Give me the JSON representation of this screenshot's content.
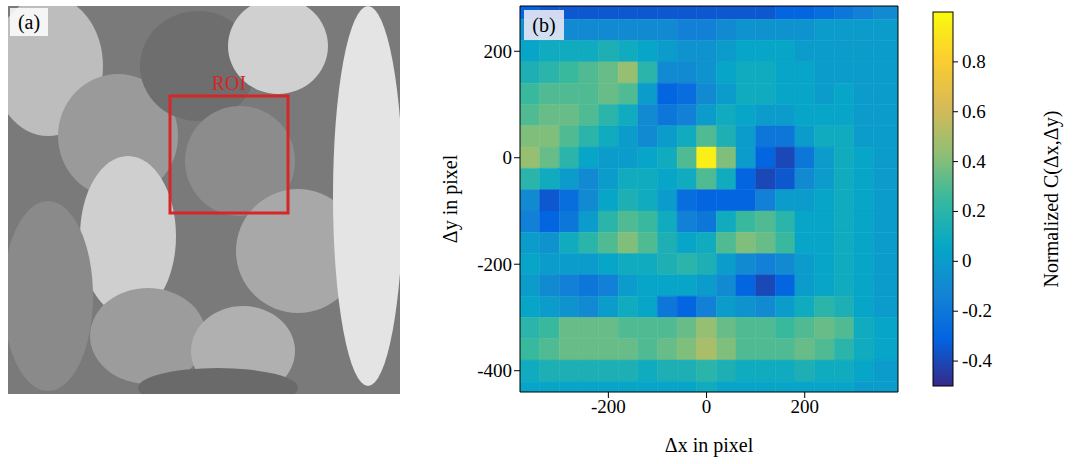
{
  "chart_data": [
    {
      "type": "image",
      "panel": "(a)",
      "annotation": "ROI"
    },
    {
      "type": "heatmap",
      "panel": "(b)",
      "x_label": "Δx in pixel",
      "y_label": "Δy in pixel",
      "xlim": [
        -380,
        390
      ],
      "ylim": [
        -440,
        285
      ],
      "xticks": [
        -200,
        0,
        200
      ],
      "yticks": [
        -400,
        -200,
        0,
        200
      ],
      "x": [
        -360,
        -320,
        -280,
        -240,
        -200,
        -160,
        -120,
        -80,
        -40,
        0,
        40,
        80,
        120,
        160,
        200,
        240,
        280,
        320,
        360
      ],
      "y": [
        280,
        240,
        200,
        160,
        120,
        80,
        40,
        0,
        -40,
        -80,
        -120,
        -160,
        -200,
        -240,
        -280,
        -320,
        -360,
        -400,
        -440
      ],
      "cells": [
        [
          -0.3,
          -0.35,
          -0.35,
          -0.35,
          -0.35,
          -0.35,
          -0.35,
          -0.35,
          -0.35,
          -0.35,
          -0.35,
          -0.35,
          -0.35,
          -0.3,
          -0.3,
          -0.25,
          -0.2,
          -0.15,
          -0.1
        ],
        [
          -0.05,
          -0.1,
          -0.1,
          -0.1,
          -0.1,
          -0.1,
          -0.1,
          -0.1,
          -0.15,
          -0.15,
          -0.1,
          -0.05,
          -0.05,
          -0.05,
          -0.05,
          0,
          0,
          0,
          0
        ],
        [
          0.05,
          0.1,
          0.1,
          0.1,
          0.15,
          0.1,
          0.05,
          0,
          -0.05,
          -0.05,
          0,
          0.05,
          0.05,
          0.05,
          0,
          0,
          0,
          0,
          0
        ],
        [
          0.15,
          0.2,
          0.25,
          0.3,
          0.35,
          0.45,
          0.2,
          -0.1,
          -0.1,
          -0.05,
          0.05,
          0.1,
          0.1,
          0.05,
          0.05,
          0,
          0,
          0,
          0
        ],
        [
          0.25,
          0.3,
          0.3,
          0.3,
          0.35,
          0.3,
          0,
          -0.3,
          -0.25,
          -0.1,
          0,
          0.1,
          0.1,
          0.05,
          0.05,
          0,
          0.05,
          0,
          0
        ],
        [
          0.3,
          0.35,
          0.35,
          0.3,
          0.2,
          0.1,
          -0.1,
          -0.2,
          -0.15,
          0,
          0.1,
          0.05,
          0,
          0,
          0.05,
          0.05,
          0.05,
          0,
          0
        ],
        [
          0.4,
          0.4,
          0.3,
          0.2,
          0.1,
          0,
          -0.1,
          0,
          0.1,
          0.3,
          0.15,
          0,
          -0.2,
          -0.2,
          0,
          0.1,
          0.1,
          0,
          0
        ],
        [
          0.45,
          0.35,
          0.2,
          0.05,
          0,
          0,
          0.05,
          0.1,
          0.3,
          0.95,
          0.4,
          0,
          -0.3,
          -0.4,
          -0.2,
          0,
          0.1,
          0.05,
          0
        ],
        [
          0.2,
          0.1,
          0,
          -0.1,
          0,
          0.1,
          0.1,
          0.05,
          0.1,
          0.3,
          0.1,
          -0.3,
          -0.4,
          -0.35,
          -0.1,
          0,
          0.1,
          0.05,
          0
        ],
        [
          -0.1,
          -0.35,
          -0.25,
          -0.1,
          0.05,
          0.15,
          0.1,
          0,
          -0.25,
          -0.3,
          -0.3,
          -0.3,
          -0.15,
          0,
          0,
          0.05,
          0.1,
          0.05,
          0
        ],
        [
          -0.15,
          -0.3,
          -0.2,
          0,
          0.2,
          0.3,
          0.25,
          0.1,
          -0.15,
          -0.2,
          0.1,
          0.25,
          0.3,
          0.2,
          0.05,
          0.05,
          0.1,
          0.05,
          0
        ],
        [
          0,
          -0.05,
          0.1,
          0.2,
          0.3,
          0.4,
          0.3,
          0.15,
          0.05,
          0.1,
          0.3,
          0.4,
          0.35,
          0.25,
          0.05,
          0.05,
          0.1,
          0.05,
          0
        ],
        [
          0.05,
          0,
          0,
          0,
          0.05,
          0.1,
          0.1,
          0.15,
          0.2,
          0.15,
          0,
          -0.1,
          -0.15,
          -0.1,
          0,
          0.05,
          0.1,
          0.05,
          0
        ],
        [
          0,
          -0.1,
          -0.15,
          -0.2,
          -0.15,
          0,
          0.05,
          0.05,
          0.05,
          0,
          -0.1,
          -0.3,
          -0.4,
          -0.3,
          0,
          0.05,
          0.1,
          0.05,
          0
        ],
        [
          0.05,
          0,
          -0.05,
          -0.1,
          0,
          0.1,
          0.05,
          -0.2,
          -0.3,
          -0.15,
          0,
          -0.05,
          -0.1,
          0,
          0.1,
          0.2,
          0.15,
          0.05,
          0
        ],
        [
          0.2,
          0.25,
          0.35,
          0.35,
          0.35,
          0.3,
          0.3,
          0.3,
          0.35,
          0.45,
          0.35,
          0.3,
          0.3,
          0.25,
          0.3,
          0.35,
          0.3,
          0.1,
          0.05
        ],
        [
          0.25,
          0.3,
          0.35,
          0.35,
          0.35,
          0.35,
          0.3,
          0.35,
          0.4,
          0.5,
          0.4,
          0.3,
          0.3,
          0.3,
          0.35,
          0.3,
          0.2,
          0.1,
          0.05
        ],
        [
          0.1,
          0.15,
          0.15,
          0.15,
          0.15,
          0.15,
          0.1,
          0.15,
          0.15,
          0.2,
          0.15,
          0.1,
          0.1,
          0.1,
          0.15,
          0.1,
          0.1,
          0.05,
          0
        ],
        [
          0.05,
          0.05,
          0.05,
          0.05,
          0.05,
          0.05,
          0.05,
          0.05,
          0.05,
          0.1,
          0.05,
          0.05,
          0.05,
          0.05,
          0.05,
          0.05,
          0.05,
          0,
          0
        ]
      ],
      "colorbar_label": "Normalized C(Δx,Δy)",
      "color_range": [
        -0.5,
        1.0
      ],
      "color_ticks": [
        -0.4,
        -0.2,
        0,
        0.2,
        0.4,
        0.6,
        0.8
      ]
    }
  ]
}
